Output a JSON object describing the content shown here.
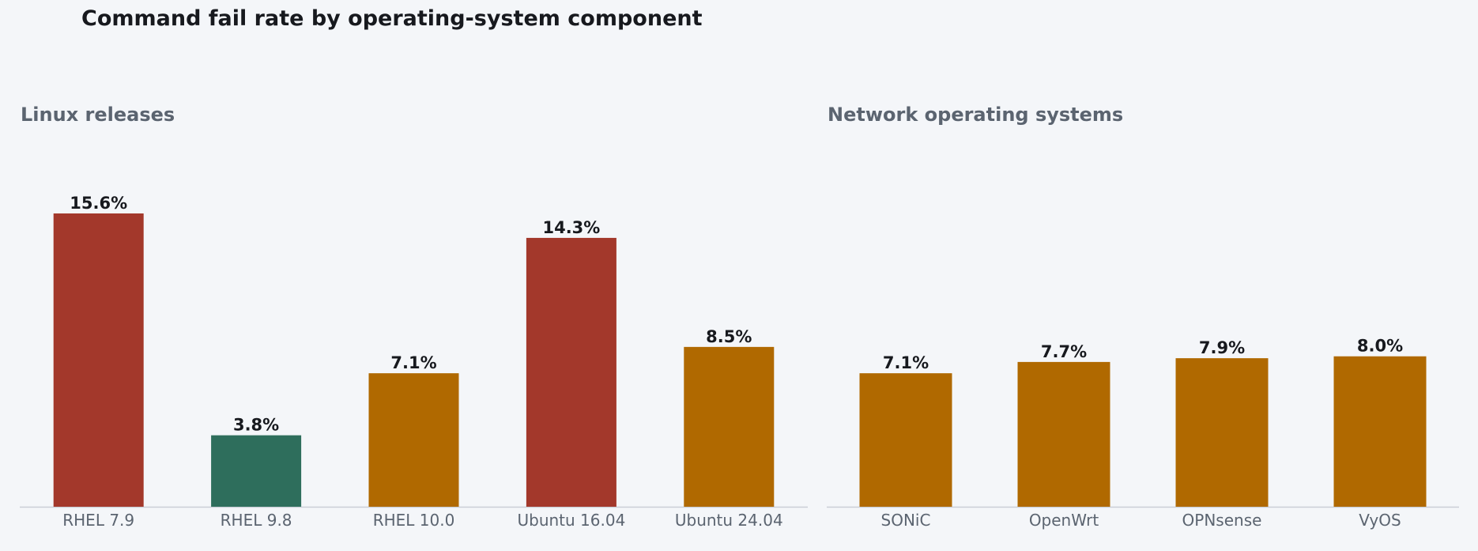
{
  "title": "Command fail rate by operating-system component",
  "colors": {
    "high": "#a3382b",
    "medium": "#b06900",
    "low": "#2e6e5c",
    "axis": "#c9ced6",
    "background": "#f4f6f9"
  },
  "chart_data": [
    {
      "type": "bar",
      "title": "Linux releases",
      "categories": [
        "RHEL 7.9",
        "RHEL 9.8",
        "RHEL 10.0",
        "Ubuntu 16.04",
        "Ubuntu 24.04"
      ],
      "values": [
        15.6,
        3.8,
        7.1,
        14.3,
        8.5
      ],
      "value_labels": [
        "15.6%",
        "3.8%",
        "7.1%",
        "14.3%",
        "8.5%"
      ],
      "bar_colors": [
        "high",
        "low",
        "medium",
        "high",
        "medium"
      ],
      "ylim": [
        0,
        15.6
      ],
      "grid": false
    },
    {
      "type": "bar",
      "title": "Network operating systems",
      "categories": [
        "SONiC",
        "OpenWrt",
        "OPNsense",
        "VyOS"
      ],
      "values": [
        7.1,
        7.7,
        7.9,
        8.0
      ],
      "value_labels": [
        "7.1%",
        "7.7%",
        "7.9%",
        "8.0%"
      ],
      "bar_colors": [
        "medium",
        "medium",
        "medium",
        "medium"
      ],
      "ylim": [
        0,
        15.6
      ],
      "grid": false
    }
  ]
}
